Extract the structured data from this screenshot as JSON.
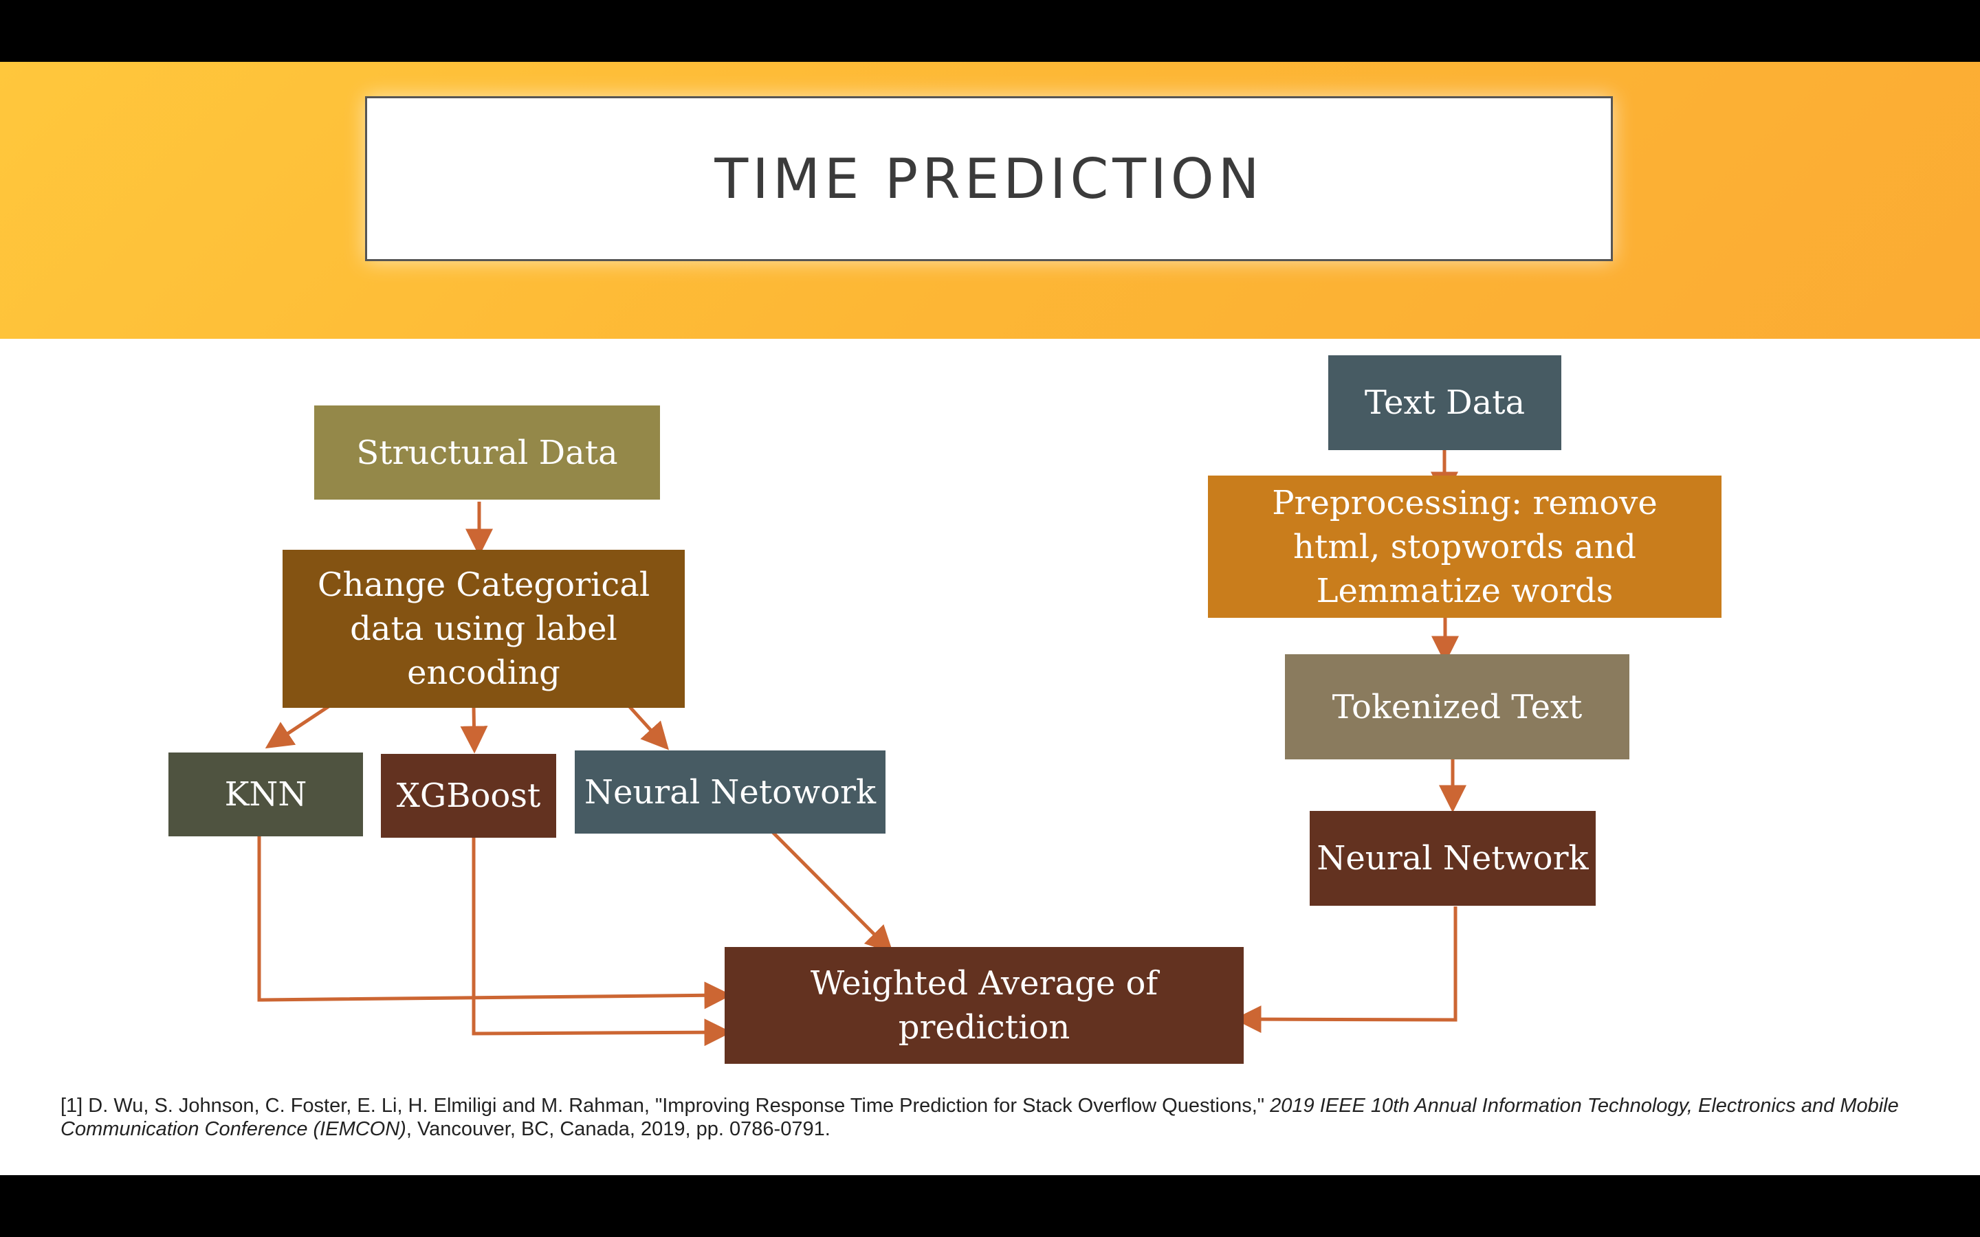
{
  "slide": {
    "title": "TIME PREDICTION"
  },
  "nodes": {
    "structural_data": "Structural Data",
    "label_encoding": "Change Categorical data using label encoding",
    "knn": "KNN",
    "xgboost": "XGBoost",
    "neural_netowork": "Neural Netowork",
    "text_data": "Text Data",
    "preprocessing": "Preprocessing: remove html, stopwords and Lemmatize words",
    "tokenized_text": "Tokenized Text",
    "neural_network": "Neural Network",
    "weighted_average": "Weighted Average of prediction"
  },
  "citation": {
    "part1": "[1] D. Wu, S. Johnson, C. Foster, E. Li, H. Elmiligi and M. Rahman, \"Improving Response Time Prediction for Stack Overflow Questions,\" ",
    "venue": "2019 IEEE 10th Annual Information Technology, Electronics and Mobile Communication Conference (IEMCON)",
    "part2": ", Vancouver, BC, Canada, 2019, pp. 0786-0791."
  },
  "colors": {
    "structural_data": "#948849",
    "label_encoding": "#845312",
    "knn": "#4f5340",
    "xgboost": "#633220",
    "neural_netowork": "#475b63",
    "text_data": "#475b63",
    "preprocessing": "#c97d1c",
    "tokenized_text": "#8a7b5e",
    "neural_network": "#633220",
    "weighted_average": "#633220",
    "arrow": "#cc6633"
  }
}
